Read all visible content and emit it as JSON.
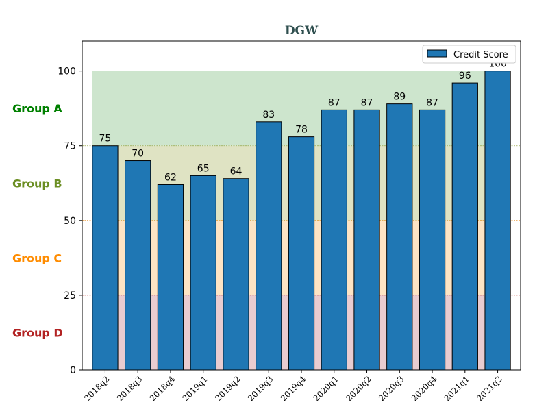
{
  "chart_data": {
    "type": "bar",
    "title": "DGW",
    "xlabel": "",
    "ylabel": "",
    "categories": [
      "2018q2",
      "2018q3",
      "2018q4",
      "2019q1",
      "2019q2",
      "2019q3",
      "2019q4",
      "2020q1",
      "2020q2",
      "2020q3",
      "2020q4",
      "2021q1",
      "2021q2"
    ],
    "series": [
      {
        "name": "Credit Score",
        "values": [
          75,
          70,
          62,
          65,
          64,
          83,
          78,
          87,
          87,
          89,
          87,
          96,
          100
        ],
        "color": "#1f77b4"
      }
    ],
    "ylim": [
      0,
      110
    ],
    "yticks": [
      0,
      25,
      50,
      75,
      100
    ],
    "legend_position": "top-right",
    "grid": false,
    "bands": [
      {
        "label": "Group A",
        "from": 75,
        "to": 100,
        "fill": "#cde5cd",
        "text_color": "#008000",
        "line_color": "#2e8b2e"
      },
      {
        "label": "Group B",
        "from": 50,
        "to": 75,
        "fill": "#dfe3c3",
        "text_color": "#6b8e23",
        "line_color": "#9aa84a"
      },
      {
        "label": "Group C",
        "from": 25,
        "to": 50,
        "fill": "#fde4c4",
        "text_color": "#ff8c00",
        "line_color": "#e88a1a"
      },
      {
        "label": "Group D",
        "from": 0,
        "to": 25,
        "fill": "#e9ccd0",
        "text_color": "#b22222",
        "line_color": "#c0392b"
      }
    ]
  }
}
